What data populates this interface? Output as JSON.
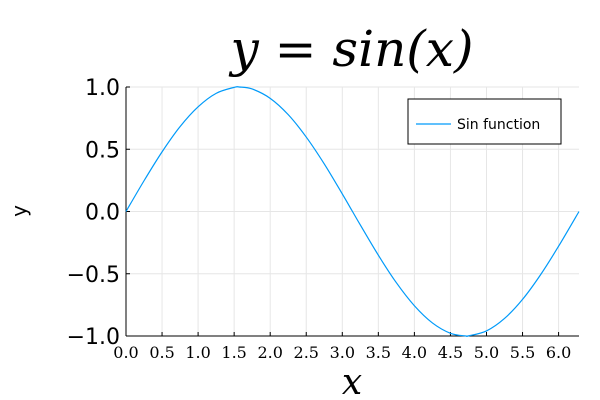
{
  "chart_data": {
    "type": "line",
    "title": "y = sin(x)",
    "xlabel": "x",
    "ylabel": "y",
    "xlim": [
      0,
      6.283185307
    ],
    "ylim": [
      -1.0,
      1.0
    ],
    "x_ticks": [
      0.0,
      0.5,
      1.0,
      1.5,
      2.0,
      2.5,
      3.0,
      3.5,
      4.0,
      4.5,
      5.0,
      5.5,
      6.0
    ],
    "x_tick_labels": [
      "0.0",
      "0.5",
      "1.0",
      "1.5",
      "2.0",
      "2.5",
      "3.0",
      "3.5",
      "4.0",
      "4.5",
      "5.0",
      "5.5",
      "6.0"
    ],
    "y_ticks": [
      -1.0,
      -0.5,
      0.0,
      0.5,
      1.0
    ],
    "y_tick_labels": [
      "−1.0",
      "−0.5",
      "0.0",
      "0.5",
      "1.0"
    ],
    "grid": true,
    "legend_position": "top-right",
    "series": [
      {
        "name": "Sin function",
        "color": "#009AF9",
        "x": [
          0.0,
          0.25,
          0.5,
          0.75,
          1.0,
          1.25,
          1.5,
          1.5708,
          1.75,
          2.0,
          2.25,
          2.5,
          2.75,
          3.0,
          3.1416,
          3.25,
          3.5,
          3.75,
          4.0,
          4.25,
          4.5,
          4.7124,
          4.75,
          5.0,
          5.25,
          5.5,
          5.75,
          6.0,
          6.2832
        ],
        "y": [
          0.0,
          0.247,
          0.479,
          0.682,
          0.841,
          0.949,
          0.997,
          1.0,
          0.984,
          0.909,
          0.778,
          0.598,
          0.382,
          0.141,
          0.0,
          -0.108,
          -0.351,
          -0.572,
          -0.757,
          -0.895,
          -0.978,
          -1.0,
          -0.999,
          -0.959,
          -0.859,
          -0.706,
          -0.508,
          -0.279,
          0.0
        ]
      }
    ]
  }
}
